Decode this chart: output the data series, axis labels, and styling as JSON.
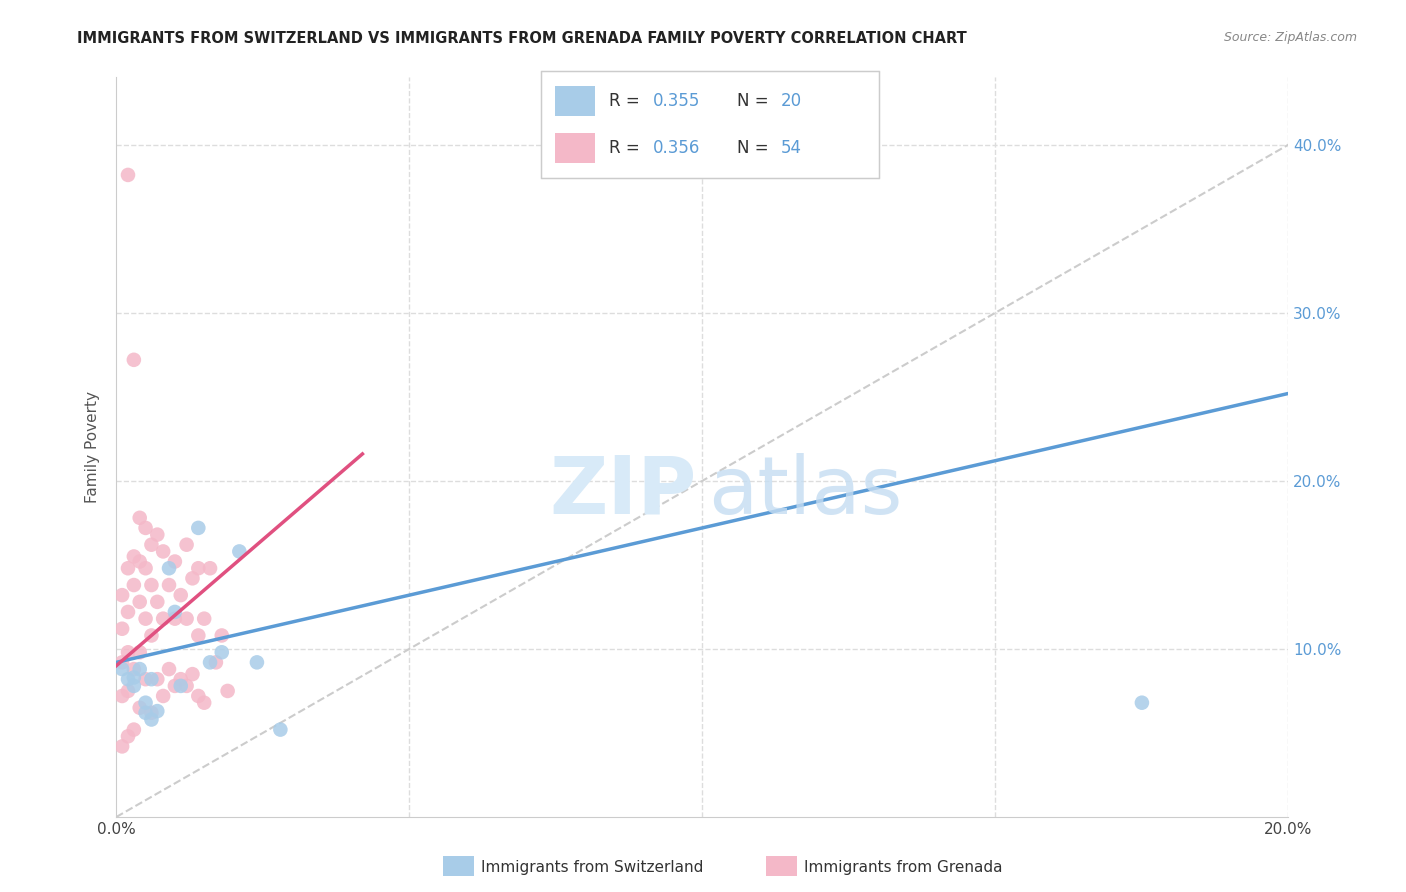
{
  "title": "IMMIGRANTS FROM SWITZERLAND VS IMMIGRANTS FROM GRENADA FAMILY POVERTY CORRELATION CHART",
  "source": "Source: ZipAtlas.com",
  "ylabel": "Family Poverty",
  "legend_label1": "Immigrants from Switzerland",
  "legend_label2": "Immigrants from Grenada",
  "blue_scatter_color": "#a8cce8",
  "pink_scatter_color": "#f4b8c8",
  "blue_line_color": "#5b9bd5",
  "pink_line_color": "#e05080",
  "dashed_line_color": "#cccccc",
  "background_color": "#ffffff",
  "grid_color": "#dddddd",
  "right_axis_color": "#5b9bd5",
  "xlim": [
    0.0,
    0.2
  ],
  "ylim": [
    0.0,
    0.44
  ],
  "sw_x": [
    0.001,
    0.002,
    0.003,
    0.003,
    0.004,
    0.005,
    0.005,
    0.006,
    0.006,
    0.007,
    0.009,
    0.01,
    0.011,
    0.014,
    0.016,
    0.018,
    0.021,
    0.024,
    0.028,
    0.175
  ],
  "sw_y": [
    0.088,
    0.082,
    0.083,
    0.078,
    0.088,
    0.068,
    0.062,
    0.082,
    0.058,
    0.063,
    0.148,
    0.122,
    0.078,
    0.172,
    0.092,
    0.098,
    0.158,
    0.092,
    0.052,
    0.068
  ],
  "gr_x": [
    0.001,
    0.001,
    0.001,
    0.001,
    0.001,
    0.002,
    0.002,
    0.002,
    0.002,
    0.002,
    0.003,
    0.003,
    0.003,
    0.003,
    0.004,
    0.004,
    0.004,
    0.004,
    0.004,
    0.005,
    0.005,
    0.005,
    0.005,
    0.006,
    0.006,
    0.006,
    0.006,
    0.007,
    0.007,
    0.007,
    0.008,
    0.008,
    0.008,
    0.009,
    0.009,
    0.01,
    0.01,
    0.01,
    0.011,
    0.011,
    0.012,
    0.012,
    0.012,
    0.013,
    0.013,
    0.014,
    0.014,
    0.014,
    0.015,
    0.015,
    0.016,
    0.017,
    0.018,
    0.019,
    0.002,
    0.003
  ],
  "gr_y": [
    0.132,
    0.112,
    0.092,
    0.072,
    0.042,
    0.148,
    0.122,
    0.098,
    0.075,
    0.048,
    0.155,
    0.138,
    0.088,
    0.052,
    0.178,
    0.152,
    0.128,
    0.098,
    0.065,
    0.172,
    0.148,
    0.118,
    0.082,
    0.162,
    0.138,
    0.108,
    0.062,
    0.168,
    0.128,
    0.082,
    0.158,
    0.118,
    0.072,
    0.138,
    0.088,
    0.152,
    0.118,
    0.078,
    0.132,
    0.082,
    0.162,
    0.118,
    0.078,
    0.142,
    0.085,
    0.148,
    0.108,
    0.072,
    0.118,
    0.068,
    0.148,
    0.092,
    0.108,
    0.075,
    0.382,
    0.272
  ]
}
